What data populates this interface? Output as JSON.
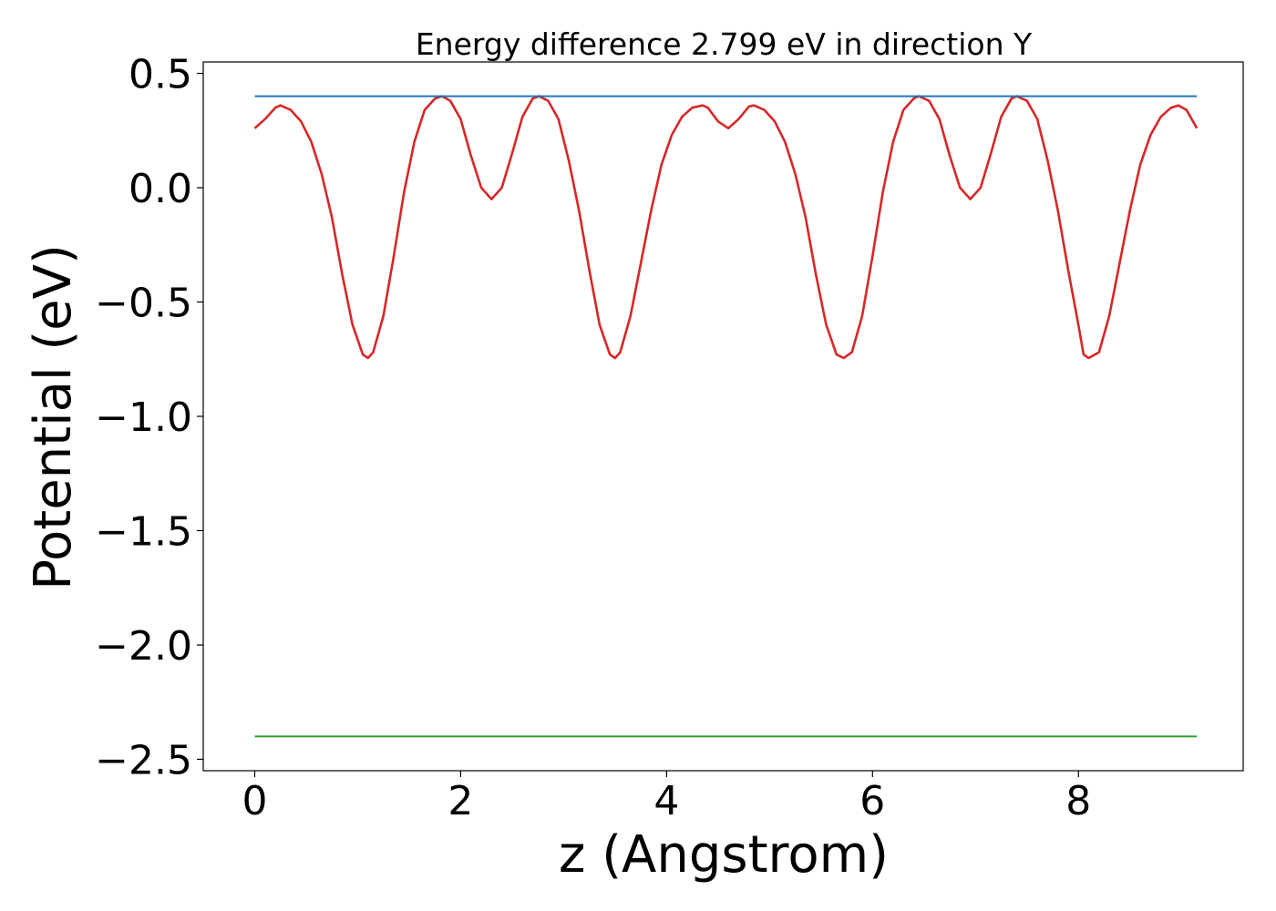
{
  "chart_data": {
    "type": "line",
    "title": "Energy difference 2.799 eV in direction Y",
    "xlabel": "z (Angstrom)",
    "ylabel": "Potential (eV)",
    "xlim": [
      -0.5,
      9.6
    ],
    "ylim": [
      -2.55,
      0.55
    ],
    "xticks": [
      0,
      2,
      4,
      6,
      8
    ],
    "xtick_labels": [
      "0",
      "2",
      "4",
      "6",
      "8"
    ],
    "yticks": [
      0.5,
      0.0,
      -0.5,
      -1.0,
      -1.5,
      -2.0,
      -2.5
    ],
    "ytick_labels": [
      "0.5",
      "0.0",
      "−0.5",
      "−1.0",
      "−1.5",
      "−2.0",
      "−2.5"
    ],
    "grid": false,
    "series": [
      {
        "color": "#d62728",
        "x": [
          0.0,
          0.1,
          0.2,
          0.25,
          0.35,
          0.45,
          0.55,
          0.65,
          0.75,
          0.85,
          0.95,
          1.05,
          1.1,
          1.15,
          1.25,
          1.35,
          1.45,
          1.55,
          1.65,
          1.75,
          1.82,
          1.9,
          2.0,
          2.1,
          2.2,
          2.3,
          2.4,
          2.5,
          2.6,
          2.7,
          2.76,
          2.85,
          2.95,
          3.05,
          3.15,
          3.25,
          3.35,
          3.45,
          3.5,
          3.55,
          3.65,
          3.75,
          3.85,
          3.95,
          4.05,
          4.15,
          4.25,
          4.35,
          4.4,
          4.5,
          4.6,
          4.7,
          4.8,
          4.85,
          4.95,
          5.05,
          5.15,
          5.25,
          5.35,
          5.45,
          5.55,
          5.65,
          5.72,
          5.8,
          5.9,
          6.0,
          6.1,
          6.2,
          6.3,
          6.4,
          6.45,
          6.55,
          6.65,
          6.75,
          6.85,
          6.95,
          7.05,
          7.15,
          7.25,
          7.35,
          7.4,
          7.5,
          7.6,
          7.7,
          7.8,
          7.9,
          8.0,
          8.05,
          8.1,
          8.2,
          8.3,
          8.4,
          8.5,
          8.6,
          8.7,
          8.8,
          8.9,
          8.97,
          9.05,
          9.15
        ],
        "y": [
          0.26,
          0.3,
          0.35,
          0.36,
          0.34,
          0.29,
          0.2,
          0.06,
          -0.13,
          -0.38,
          -0.6,
          -0.73,
          -0.745,
          -0.72,
          -0.56,
          -0.3,
          -0.02,
          0.2,
          0.34,
          0.39,
          0.4,
          0.38,
          0.3,
          0.14,
          0.0,
          -0.05,
          0.0,
          0.15,
          0.31,
          0.39,
          0.4,
          0.38,
          0.3,
          0.12,
          -0.1,
          -0.36,
          -0.6,
          -0.73,
          -0.745,
          -0.72,
          -0.56,
          -0.33,
          -0.1,
          0.1,
          0.23,
          0.31,
          0.35,
          0.36,
          0.35,
          0.29,
          0.26,
          0.3,
          0.355,
          0.36,
          0.34,
          0.29,
          0.2,
          0.06,
          -0.13,
          -0.38,
          -0.6,
          -0.73,
          -0.745,
          -0.72,
          -0.56,
          -0.3,
          -0.02,
          0.2,
          0.34,
          0.39,
          0.4,
          0.38,
          0.3,
          0.14,
          0.0,
          -0.05,
          0.0,
          0.15,
          0.31,
          0.39,
          0.4,
          0.38,
          0.3,
          0.12,
          -0.1,
          -0.36,
          -0.6,
          -0.73,
          -0.745,
          -0.72,
          -0.56,
          -0.33,
          -0.1,
          0.1,
          0.23,
          0.31,
          0.35,
          0.36,
          0.34,
          0.26
        ]
      },
      {
        "color": "#1f77b4",
        "x": [
          0.0,
          9.15
        ],
        "y": [
          0.4,
          0.4
        ]
      },
      {
        "color": "#2ca02c",
        "x": [
          0.0,
          9.15
        ],
        "y": [
          -2.4,
          -2.4
        ]
      }
    ]
  }
}
